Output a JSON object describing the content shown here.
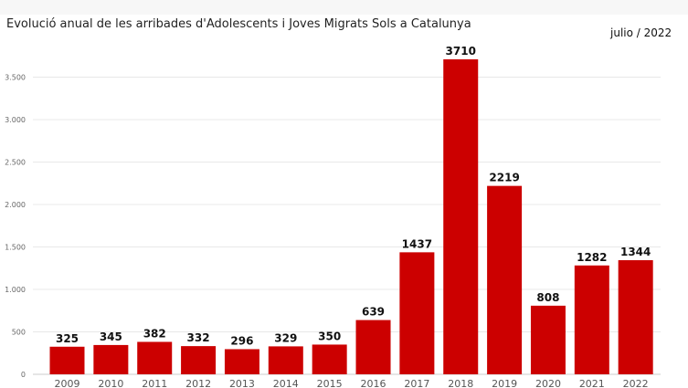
{
  "title": "Evolució anual de les arribades d'Adolescents i Joves Migrats Sols a Catalunya",
  "date_label": "julio / 2022",
  "colors": {
    "bar": "#cc0000",
    "grid": "#e8e8e8",
    "background": "#ffffff"
  },
  "chart_data": {
    "type": "bar",
    "title": "Evolució anual de les arribades d'Adolescents i Joves Migrats Sols a Catalunya",
    "categories": [
      "2009",
      "2010",
      "2011",
      "2012",
      "2013",
      "2014",
      "2015",
      "2016",
      "2017",
      "2018",
      "2019",
      "2020",
      "2021",
      "2022"
    ],
    "values": [
      325,
      345,
      382,
      332,
      296,
      329,
      350,
      639,
      1437,
      3710,
      2219,
      808,
      1282,
      1344
    ],
    "data_labels": [
      "325",
      "345",
      "382",
      "332",
      "296",
      "329",
      "350",
      "639",
      "1437",
      "3710",
      "2219",
      "808",
      "1282",
      "1344"
    ],
    "yticks": [
      0,
      500,
      1000,
      1500,
      2000,
      2500,
      3000,
      3500
    ],
    "ytick_labels": [
      "0",
      "500",
      "1.000",
      "1.500",
      "2.000",
      "2.500",
      "3.000",
      "3.500"
    ],
    "ylim": [
      0,
      3850
    ],
    "grid": true,
    "legend": "none",
    "xlabel": "",
    "ylabel": ""
  }
}
